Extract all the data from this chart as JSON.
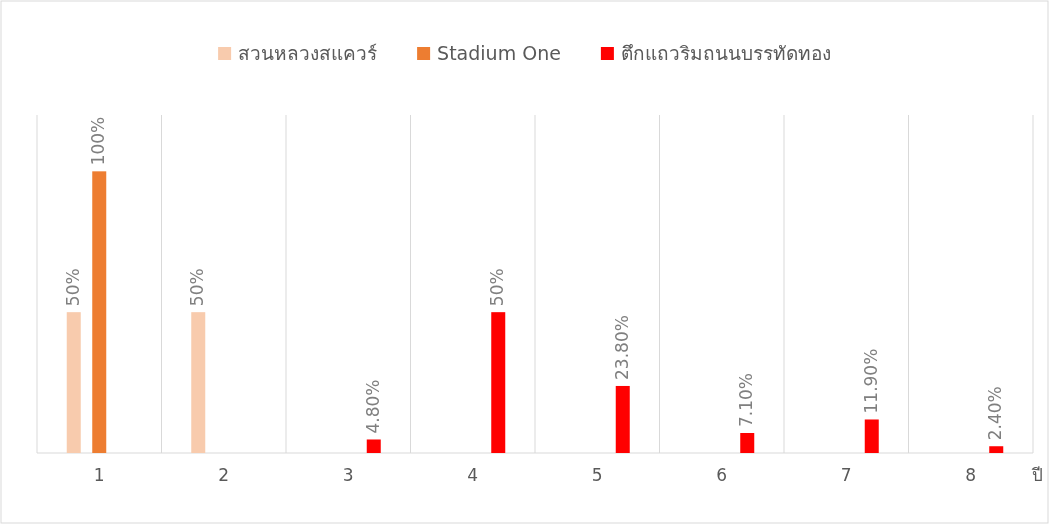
{
  "chart_data": {
    "type": "bar",
    "categories": [
      "1",
      "2",
      "3",
      "4",
      "5",
      "6",
      "7",
      "8"
    ],
    "xlabel": "ปี",
    "legend": "top",
    "grid": "x",
    "series": [
      {
        "name": "สวนหลวงสแควร์",
        "color": "#f8cbad",
        "values": [
          50,
          50,
          null,
          null,
          null,
          null,
          null,
          null
        ],
        "value_labels": [
          "50%",
          "50%",
          null,
          null,
          null,
          null,
          null,
          null
        ]
      },
      {
        "name": "Stadium One",
        "color": "#ed7d31",
        "values": [
          100,
          null,
          null,
          null,
          null,
          null,
          null,
          null
        ],
        "value_labels": [
          "100%",
          null,
          null,
          null,
          null,
          null,
          null,
          null
        ]
      },
      {
        "name": "ตึกแถวริมถนนบรรทัดทอง",
        "color": "#ff0000",
        "values": [
          null,
          null,
          4.8,
          50,
          23.8,
          7.1,
          11.9,
          2.4
        ],
        "value_labels": [
          null,
          null,
          "4.80%",
          "50%",
          "23.80%",
          "7.10%",
          "11.90%",
          "2.40%"
        ]
      }
    ]
  }
}
